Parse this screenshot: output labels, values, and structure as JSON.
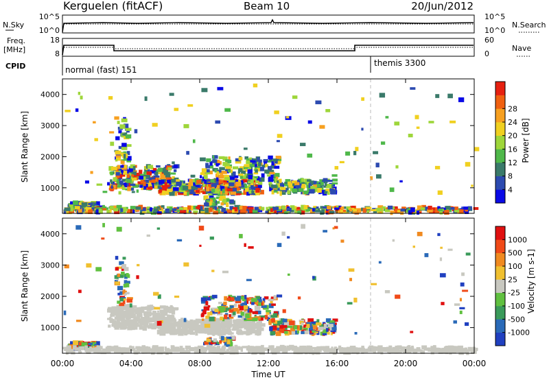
{
  "header": {
    "station": "Kerguelen (fitACF)",
    "beam": "Beam 10",
    "date": "20/Jun/2012"
  },
  "sky_panel": {
    "left_label": "N.Sky",
    "right_label": "N.Search",
    "left_ticks": [
      "10^5",
      "10^0"
    ],
    "right_ticks": [
      "10^5",
      "10^0"
    ]
  },
  "freq_panel": {
    "left_label_1": "Freq.",
    "left_label_2": "[MHz]",
    "right_label": "Nave",
    "left_ticks": [
      "18",
      "8"
    ],
    "right_ticks": [
      "60",
      "0"
    ]
  },
  "cpid": {
    "label": "CPID",
    "programs": [
      {
        "name": "normal (fast) 151",
        "start_hour": 0
      },
      {
        "name": "themis 3300",
        "start_hour": 18
      }
    ]
  },
  "x_axis": {
    "label": "Time UT",
    "ticks": [
      "00:00",
      "04:00",
      "08:00",
      "12:00",
      "16:00",
      "20:00",
      "00:00"
    ]
  },
  "chart_data": [
    {
      "type": "heatmap",
      "name": "power",
      "ylabel": "Slant Range [km]",
      "ylim": [
        180,
        4500
      ],
      "yticks": [
        "1000",
        "2000",
        "3000",
        "4000"
      ],
      "yticks_values": [
        1000,
        2000,
        3000,
        4000
      ],
      "xlim_hours": [
        0,
        24
      ],
      "colorbar": {
        "label": "Power [dB]",
        "ticks": [
          "4",
          "8",
          "12",
          "16",
          "20",
          "24",
          "28"
        ],
        "colors": [
          "#0a0ae6",
          "#2c4ab0",
          "#3a7a6a",
          "#4fb84a",
          "#9ed63a",
          "#f0d020",
          "#f7a020",
          "#f06010",
          "#e62010"
        ]
      }
    },
    {
      "type": "heatmap",
      "name": "velocity",
      "ylabel": "Slant Range [km]",
      "ylim": [
        180,
        4500
      ],
      "yticks": [
        "1000",
        "2000",
        "3000",
        "4000"
      ],
      "yticks_values": [
        1000,
        2000,
        3000,
        4000
      ],
      "xlim_hours": [
        0,
        24
      ],
      "colorbar": {
        "label": "Velocity [m s-1]",
        "ticks": [
          "1000",
          "500",
          "100",
          "25",
          "-25",
          "-100",
          "-500",
          "-1000"
        ],
        "colors": [
          "#2040c0",
          "#2a6ab8",
          "#3a9a5a",
          "#60c040",
          "#c8c8c0",
          "#f0c030",
          "#f08a20",
          "#f04a18",
          "#e01010"
        ]
      }
    }
  ]
}
